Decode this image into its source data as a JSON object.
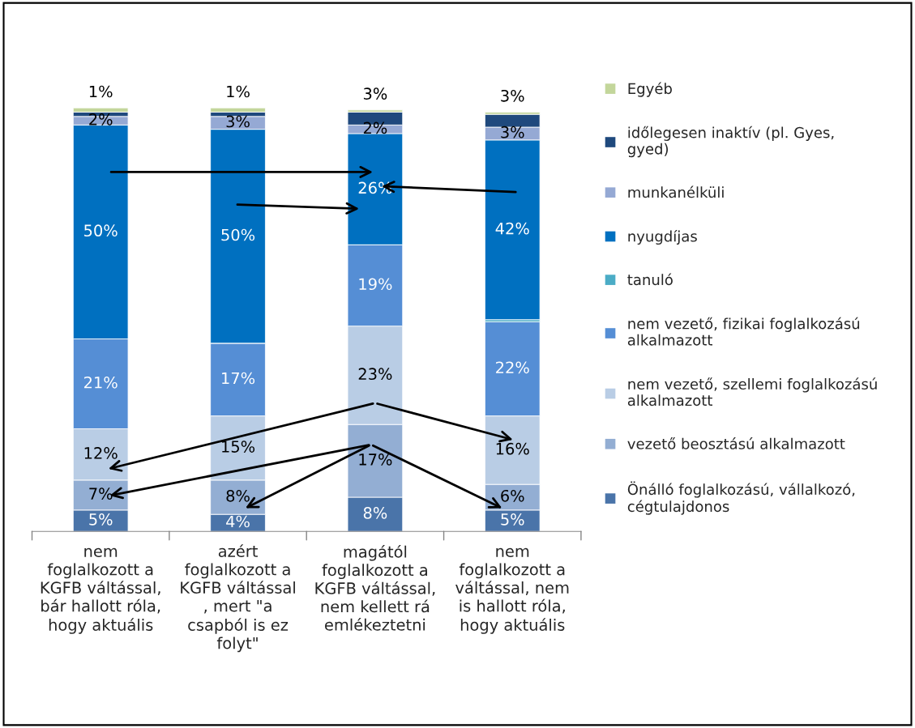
{
  "chart_data": {
    "type": "bar",
    "stacked": true,
    "legend": "right",
    "grid": false,
    "categories": [
      "nem\nfoglalkozott a\nKGFB váltással,\nbár hallott róla,\nhogy aktuális",
      "azért\nfoglalkozott a\nKGFB váltással\n, mert \"a\ncsapból is ez\nfolyt\"",
      "magától\nfoglalkozott a\nKGFB váltással,\nnem kellett rá\nemlékeztetni",
      "nem\nfoglalkozott a\nváltással, nem\nis hallott róla,\nhogy aktuális"
    ],
    "series": [
      {
        "name": "Önálló foglalkozású, vállalkozó, cégtulajdonos",
        "color": "#4a74a9",
        "values": [
          5,
          4,
          8,
          5
        ],
        "value_labels": [
          "5%",
          "4%",
          "8%",
          "5%"
        ]
      },
      {
        "name": "vezető beosztású alkalmazott",
        "color": "#93aed3",
        "values": [
          7,
          8,
          17,
          6
        ],
        "value_labels": [
          "7%",
          "8%",
          "17%",
          "6%"
        ]
      },
      {
        "name": "nem vezető, szellemi foglalkozású alkalmazott",
        "color": "#b9cde5",
        "values": [
          12,
          15,
          23,
          16
        ],
        "value_labels": [
          "12%",
          "15%",
          "23%",
          "16%"
        ]
      },
      {
        "name": "nem vezető, fizikai foglalkozású alkalmazott",
        "color": "#558ed5",
        "values": [
          21,
          17,
          19,
          22
        ],
        "value_labels": [
          "21%",
          "17%",
          "19%",
          "22%"
        ]
      },
      {
        "name": "tanuló",
        "color": "#4bacc6",
        "values": [
          0,
          0,
          0,
          0.5
        ],
        "value_labels": [
          null,
          null,
          null,
          null
        ]
      },
      {
        "name": "nyugdíjas",
        "color": "#0070c0",
        "values": [
          50,
          50,
          26,
          42
        ],
        "value_labels": [
          "50%",
          "50%",
          "26%",
          "42%"
        ]
      },
      {
        "name": "munkanélküli",
        "color": "#95a9d4",
        "values": [
          2,
          3,
          2,
          3
        ],
        "value_labels": [
          "2%",
          "3%",
          "2%",
          "3%"
        ]
      },
      {
        "name": "időlegesen inaktív (pl. Gyes, gyed)",
        "color": "#1f497d",
        "values": [
          1,
          1,
          3,
          3
        ],
        "value_labels": [
          null,
          null,
          "3%",
          "3%"
        ]
      },
      {
        "name": "Egyéb",
        "color": "#c3d69b",
        "values": [
          1,
          1,
          0.5,
          0.5
        ],
        "value_labels": [
          "1%",
          "1%",
          null,
          null
        ]
      }
    ]
  }
}
